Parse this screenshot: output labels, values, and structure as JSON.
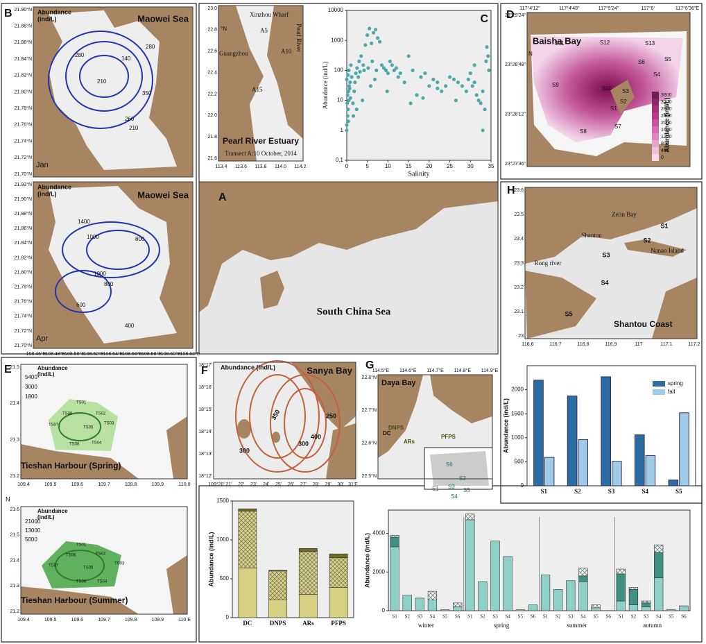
{
  "maps": {
    "b1": {
      "texts": [
        "B",
        "Abundance",
        "(ind/L)",
        "Maowei Sea",
        "Jan",
        "280",
        "140",
        "210",
        "350",
        "280",
        "260",
        "210"
      ],
      "yticks": [
        "21.90°N",
        "21.88°N",
        "21.86°N",
        "21.84°N",
        "21.82°N",
        "21.80°N",
        "21.78°N",
        "21.76°N",
        "21.74°N",
        "21.72°N",
        "21.70°N"
      ]
    },
    "b2": {
      "texts": [
        "Abundance",
        "(ind/L)",
        "Maowei Sea",
        "Apr",
        "1400",
        "1000",
        "800",
        "1000",
        "600",
        "800",
        "400"
      ],
      "yticks": [
        "21.92°N",
        "21.90°N",
        "21.88°N",
        "21.86°N",
        "21.84°N",
        "21.82°N",
        "21.80°N",
        "21.78°N",
        "21.76°N",
        "21.74°N",
        "21.72°N",
        "21.70°N"
      ],
      "xticks": [
        "108.46°E",
        "108.48°E",
        "108.50°E",
        "108.52°E",
        "108.54°E",
        "108.56°E",
        "108.58°E",
        "108.60°E",
        "108.62°E"
      ]
    },
    "pearl": {
      "texts": [
        "Xinzhou Wharf",
        "A5",
        "A10",
        "Guangzhou",
        "Pearl River",
        "A15",
        "Pearl River Estuary",
        "Transect A:10 October, 2014",
        "°N"
      ],
      "yticks": [
        "23.0",
        "22.8",
        "22.6",
        "22.4",
        "22.2",
        "22.0",
        "21.8",
        "21.6"
      ],
      "xticks": [
        "113.4",
        "113.6",
        "113.8",
        "114.0",
        "114.2"
      ]
    },
    "a": {
      "texts": [
        "A",
        "South China Sea"
      ]
    },
    "d": {
      "texts": [
        "D",
        "Baisha Bay",
        "S11",
        "S12",
        "S13",
        "S5",
        "S6",
        "S4",
        "S9",
        "S10",
        "S3",
        "S2",
        "S1",
        "S8",
        "S7",
        "Abundance (ind/L)",
        "N"
      ],
      "yticks": [
        "23°29'24\"",
        "23°28'48\"",
        "23°28'12\"",
        "23°27'36\""
      ],
      "xticks": [
        "117°4'12\"",
        "117°4'48\"",
        "117°5'24\"",
        "117°6'",
        "117°6'36\"E"
      ],
      "colorbar": [
        "3600",
        "3200",
        "2800",
        "2400",
        "2000",
        "1600",
        "1200",
        "800",
        "400",
        "0"
      ]
    },
    "h": {
      "texts": [
        "H",
        "Zelin Bay",
        "S1",
        "Shantou",
        "S2",
        "Nanao Island",
        "S3",
        "Rong river",
        "S4",
        "S5",
        "Shantou Coast"
      ],
      "yticks": [
        "23.6",
        "23.5",
        "23.4",
        "23.3",
        "23.2",
        "23.1",
        "23"
      ],
      "xticks": [
        "116.6",
        "116.7",
        "116.8",
        "116.9",
        "117",
        "117.1",
        "117.2"
      ]
    },
    "e1": {
      "texts": [
        "E",
        "Abundance",
        "(ind/L)",
        "5400",
        "3000",
        "1800",
        "TS01",
        "TS02",
        "TS03",
        "TS04",
        "TS05",
        "TS06",
        "TS07",
        "TS08",
        "Tieshan Harbour  (Spring)"
      ],
      "yticks": [
        "21.5",
        "21.4",
        "21.3",
        "21.2"
      ],
      "xticks": [
        "109.4",
        "109.5",
        "109.6",
        "109.7",
        "109.8",
        "109.9",
        "110.0"
      ]
    },
    "e2": {
      "texts": [
        "N",
        "Abundance",
        "(ind/L)",
        "21000",
        "13000",
        "5000",
        "TS01",
        "TS02",
        "TS03",
        "TS04",
        "TS05",
        "TS06",
        "TS07",
        "TS08",
        "Tieshan Harbour  (Summer)"
      ],
      "yticks": [
        "21.6",
        "21.5",
        "21.4",
        "21.3",
        "21.2"
      ],
      "xticks": [
        "109.4",
        "109.5",
        "109.6",
        "109.7",
        "109.8",
        "109.9",
        "110 E"
      ]
    },
    "f": {
      "texts": [
        "F",
        "Abundance (ind/L)",
        "Sanya Bay",
        "300",
        "350",
        "300",
        "400",
        "250"
      ],
      "yticks": [
        "18°17'",
        "18°16'",
        "18°15'",
        "18°14'",
        "18°13'",
        "18°12'"
      ],
      "xticks": [
        "109°20'",
        "21'",
        "22'",
        "23'",
        "24'",
        "25'",
        "26'",
        "27'",
        "28'",
        "29'",
        "30'",
        "31'E"
      ]
    },
    "g": {
      "texts": [
        "G",
        "Daya Bay",
        "DNPS",
        "DC",
        "ARs",
        "PFPS",
        "S6",
        "S2",
        "S3",
        "S1",
        "S4",
        "S5"
      ],
      "yticks": [
        "22.8°N",
        "22.7°N",
        "22.6°N",
        "22.5°N"
      ],
      "xticks": [
        "114.5°E",
        "114.6°E",
        "114.7°E",
        "114.8°E",
        "114.9°E"
      ]
    }
  },
  "chart_data": [
    {
      "type": "scatter",
      "label": "C",
      "xlabel": "Salinity",
      "ylabel": "Abundance (ind/L)",
      "color": "#4ea8a8",
      "log_y": true,
      "xlim": [
        0,
        35
      ],
      "xticks": [
        0,
        5,
        10,
        15,
        20,
        25,
        30,
        35
      ],
      "ylim": [
        0.1,
        10000
      ],
      "yticks": [
        0.1,
        1,
        10,
        100,
        1000,
        10000
      ],
      "x": [
        0,
        0,
        0.2,
        0.3,
        0.1,
        0.5,
        0.2,
        0.4,
        0.6,
        0.8,
        0,
        0.3,
        0.5,
        1,
        1.2,
        0.7,
        0.9,
        1.5,
        1.8,
        2,
        2.2,
        2.5,
        3,
        3.5,
        4,
        4.5,
        5,
        5.5,
        6,
        6.5,
        7,
        7.5,
        8,
        2.8,
        3.2,
        4.2,
        5.2,
        6.2,
        7.2,
        8.5,
        9,
        9.5,
        10,
        10.5,
        11,
        11.5,
        12,
        12.5,
        13,
        14,
        15,
        16,
        17,
        18,
        19,
        20,
        21,
        22,
        23,
        24,
        25,
        26,
        27,
        28,
        29,
        30,
        31,
        32,
        33,
        33.5,
        34,
        34.3,
        33,
        32.5,
        31.5,
        30.5,
        34.5,
        3.8,
        2.4,
        1.6,
        0.4,
        5.8,
        6.8,
        9.8,
        15.5,
        18.5,
        22,
        26.5,
        29.5,
        31,
        33.8
      ],
      "values": [
        1,
        1.5,
        3,
        5,
        8,
        10,
        15,
        20,
        30,
        40,
        50,
        70,
        100,
        150,
        60,
        25,
        12,
        8,
        20,
        40,
        80,
        120,
        200,
        300,
        150,
        700,
        1500,
        2500,
        800,
        1800,
        2300,
        1200,
        900,
        60,
        90,
        100,
        120,
        200,
        100,
        150,
        120,
        100,
        80,
        200,
        150,
        100,
        120,
        60,
        80,
        40,
        300,
        100,
        15,
        60,
        80,
        30,
        50,
        40,
        20,
        30,
        60,
        50,
        40,
        30,
        20,
        80,
        40,
        10,
        20,
        5,
        600,
        300,
        1,
        8,
        15,
        30,
        100,
        10,
        5,
        3,
        2,
        30,
        50,
        20,
        8,
        12,
        25,
        10,
        50,
        150,
        200
      ]
    },
    {
      "type": "bar",
      "ylabel": "Abundance (ind/L)",
      "legend": "upper right",
      "categories": [
        "S1",
        "S2",
        "S3",
        "S4",
        "S5"
      ],
      "ylim": [
        0,
        2500
      ],
      "yticks": [
        0,
        500,
        1000,
        1500,
        2000
      ],
      "series": [
        {
          "name": "spring",
          "color": "#2b6ca3",
          "values": [
            2200,
            1870,
            2270,
            1060,
            120
          ]
        },
        {
          "name": "fall",
          "color": "#9fcbe8",
          "values": [
            590,
            960,
            510,
            630,
            1520
          ]
        }
      ]
    },
    {
      "type": "stacked_bar",
      "ylabel": "Abundance (ind/L)",
      "categories": [
        "DC",
        "DNPS",
        "ARs",
        "PFPS"
      ],
      "ylim": [
        0,
        1500
      ],
      "yticks": [
        0,
        500,
        1000,
        1500
      ],
      "series": [
        {
          "color": "#d6d083",
          "values": [
            640,
            230,
            300,
            390
          ]
        },
        {
          "color": "#d6d083",
          "hatch": true,
          "values": [
            730,
            370,
            550,
            380
          ]
        },
        {
          "color": "#6f6a2a",
          "values": [
            30,
            10,
            40,
            50
          ]
        }
      ]
    },
    {
      "type": "stacked_bar",
      "ylabel": "Abundance (ind/L)",
      "groups": [
        "winter",
        "spring",
        "summer",
        "autumn"
      ],
      "categories": [
        "S1",
        "S2",
        "S3",
        "S4",
        "S5",
        "S6",
        "S1",
        "S2",
        "S3",
        "S4",
        "S5",
        "S6",
        "S1",
        "S2",
        "S3",
        "S4",
        "S5",
        "S6",
        "S1",
        "S2",
        "S3",
        "S4",
        "S5",
        "S6"
      ],
      "ylim": [
        0,
        5200
      ],
      "yticks": [
        0,
        2000,
        4000
      ],
      "series": [
        {
          "color": "#8fd0c6",
          "values": [
            3300,
            800,
            650,
            550,
            50,
            200,
            4700,
            1500,
            3600,
            2800,
            50,
            300,
            1850,
            1100,
            1550,
            1500,
            150,
            0,
            500,
            300,
            200,
            1700,
            50,
            250
          ]
        },
        {
          "color": "#3f8f83",
          "values": [
            500,
            0,
            0,
            0,
            0,
            0,
            0,
            0,
            0,
            0,
            0,
            0,
            0,
            0,
            0,
            300,
            0,
            0,
            1400,
            800,
            200,
            1300,
            0,
            0
          ]
        },
        {
          "color": "#e8f4f2",
          "hatch": true,
          "values": [
            100,
            0,
            0,
            450,
            0,
            200,
            300,
            0,
            0,
            0,
            0,
            0,
            0,
            0,
            0,
            400,
            150,
            0,
            250,
            100,
            100,
            400,
            0,
            0
          ]
        }
      ]
    }
  ]
}
